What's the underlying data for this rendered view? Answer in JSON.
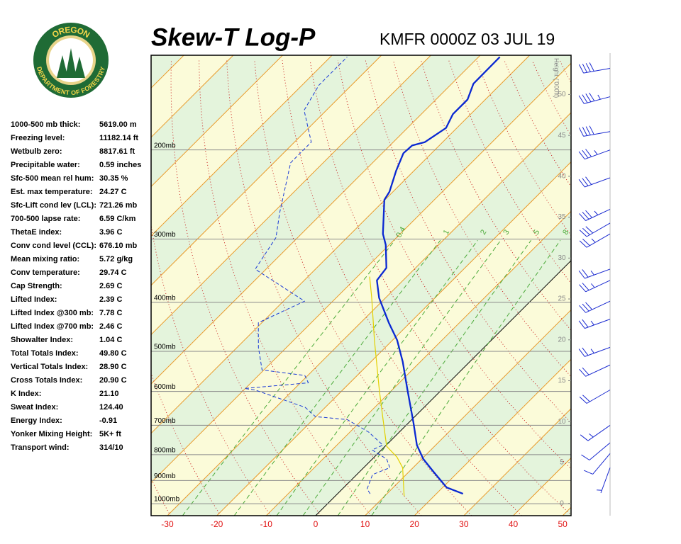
{
  "header": {
    "title": "Skew-T Log-P",
    "station": "KMFR 0000Z 03 JUL 19"
  },
  "logo": {
    "top": "OREGON",
    "bottom": "DEPARTMENT OF FORESTRY"
  },
  "stats": [
    {
      "label": "1000-500 mb thick:",
      "value": "5619.00 m"
    },
    {
      "label": "Freezing level:",
      "value": "11182.14 ft"
    },
    {
      "label": "Wetbulb zero:",
      "value": "8817.61 ft"
    },
    {
      "label": "Precipitable water:",
      "value": "0.59 inches"
    },
    {
      "label": "Sfc-500 mean rel hum:",
      "value": "30.35 %"
    },
    {
      "label": "Est. max temperature:",
      "value": "24.27 C"
    },
    {
      "label": "Sfc-Lift cond lev (LCL):",
      "value": "721.26 mb"
    },
    {
      "label": "700-500 lapse rate:",
      "value": "6.59 C/km"
    },
    {
      "label": "ThetaE index:",
      "value": "3.96 C"
    },
    {
      "label": "Conv cond level (CCL):",
      "value": "676.10 mb"
    },
    {
      "label": "Mean mixing ratio:",
      "value": "5.72 g/kg"
    },
    {
      "label": "Conv temperature:",
      "value": "29.74 C"
    },
    {
      "label": "Cap Strength:",
      "value": "2.69 C"
    },
    {
      "label": "Lifted Index:",
      "value": "2.39 C"
    },
    {
      "label": "Lifted Index @300 mb:",
      "value": "7.78 C"
    },
    {
      "label": "Lifted Index @700 mb:",
      "value": "2.46 C"
    },
    {
      "label": "Showalter Index:",
      "value": "1.04 C"
    },
    {
      "label": "Total Totals Index:",
      "value": "49.80 C"
    },
    {
      "label": "Vertical Totals Index:",
      "value": "28.90 C"
    },
    {
      "label": "Cross Totals Index:",
      "value": "20.90 C"
    },
    {
      "label": "K Index:",
      "value": "21.10"
    },
    {
      "label": "Sweat Index:",
      "value": "124.40"
    },
    {
      "label": "Energy Index:",
      "value": "-0.91"
    },
    {
      "label": "Yonker Mixing Height:",
      "value": "5K+ ft"
    },
    {
      "label": "Transport wind:",
      "value": "314/10"
    }
  ],
  "chart_data": {
    "type": "skewt",
    "xlim": [
      -33.3,
      51.7
    ],
    "xticks": [
      -30,
      -20,
      -10,
      0,
      10,
      20,
      30,
      40,
      50
    ],
    "ylim": [
      1056,
      130
    ],
    "log_y": true,
    "yticks": [
      {
        "value": 200,
        "label": "200mb"
      },
      {
        "value": 300,
        "label": "300mb"
      },
      {
        "value": 400,
        "label": "400mb"
      },
      {
        "value": 500,
        "label": "500mb"
      },
      {
        "value": 600,
        "label": "600mb"
      },
      {
        "value": 700,
        "label": "700mb"
      },
      {
        "value": 800,
        "label": "800mb"
      },
      {
        "value": 900,
        "label": "900mb"
      },
      {
        "value": 1000,
        "label": "1000mb"
      }
    ],
    "y2label": "Height ('000ft)",
    "y2lim": [
      -1.5,
      54.8
    ],
    "y2ticks": [
      0,
      5,
      10,
      15,
      20,
      25,
      30,
      35,
      40,
      45,
      50
    ],
    "mixing_ratios": [
      0.4,
      1,
      2,
      3,
      5,
      8
    ],
    "series": [
      {
        "color": "#0a28d2",
        "style": "solid",
        "pressure": [
          956,
          929,
          862,
          816,
          766,
          691,
          596,
          524,
          475,
          439,
          392,
          362,
          342,
          308,
          293,
          251,
          242,
          220,
          203,
          196,
          193,
          181,
          170,
          159,
          148,
          131
        ],
        "values": [
          25.4,
          20.8,
          14.7,
          10.3,
          6.2,
          0.9,
          -6.9,
          -13.6,
          -19.1,
          -24.3,
          -31.3,
          -35.3,
          -35.9,
          -40.7,
          -43.5,
          -50.1,
          -50.7,
          -53.6,
          -55.7,
          -55.5,
          -53.6,
          -52.2,
          -53.6,
          -53.6,
          -55.6,
          -55.7
        ]
      },
      {
        "color": "#1a3ad6",
        "style": "dashed",
        "pressure": [
          956,
          935,
          876,
          849,
          816,
          783,
          766,
          722,
          682,
          673,
          645,
          596,
          592,
          577,
          558,
          544,
          491,
          439,
          398,
          344,
          298,
          266,
          212,
          193,
          167,
          149,
          131
        ],
        "values": [
          6.6,
          5.0,
          3.2,
          5.3,
          2.9,
          -1.9,
          -0.7,
          -6.2,
          -13.1,
          -20.1,
          -24.1,
          -37.8,
          -40.2,
          -28.4,
          -30.6,
          -40.4,
          -45.7,
          -50.7,
          -45.7,
          -62.2,
          -64.4,
          -68.7,
          -76.6,
          -76.6,
          -84.5,
          -86.6,
          -86.6
        ]
      },
      {
        "color": "#e2d000",
        "style": "solid",
        "pressure": [
          965,
          849,
          809,
          770,
          677,
          596,
          475,
          392,
          356
        ],
        "values": [
          13.9,
          7.9,
          4.6,
          0.3,
          -6.2,
          -12.6,
          -23.7,
          -32.8,
          -37.5
        ]
      }
    ],
    "winds": {
      "color": "#1a2ad0",
      "pressure": [
        138,
        157,
        184,
        200,
        227,
        262,
        279,
        293,
        344,
        362,
        398,
        432,
        491,
        532,
        596,
        700,
        758,
        796,
        849
      ],
      "direction": [
        260,
        255,
        260,
        250,
        250,
        245,
        240,
        240,
        250,
        245,
        245,
        250,
        250,
        245,
        240,
        235,
        230,
        220,
        200
      ],
      "speed": [
        40,
        45,
        40,
        35,
        30,
        35,
        30,
        25,
        25,
        25,
        30,
        25,
        25,
        20,
        20,
        15,
        10,
        10,
        5
      ]
    }
  }
}
